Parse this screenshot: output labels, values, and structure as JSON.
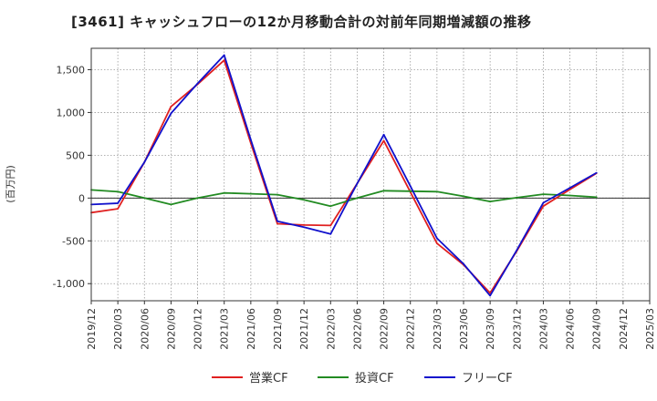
{
  "chart_data": {
    "type": "line",
    "title": "[3461]  キャッシュフローの12か月移動合計の対前年同期増減額の推移",
    "ylabel": "(百万円)",
    "xlabel": "",
    "ylim": [
      -1200,
      1750
    ],
    "y_ticks": [
      1500,
      1000,
      500,
      0,
      -500,
      -1000
    ],
    "y_tick_labels": [
      "1,500",
      "1,000",
      "500",
      "0",
      "-500",
      "-1,000"
    ],
    "categories": [
      "2019/12",
      "2020/03",
      "2020/06",
      "2020/09",
      "2020/12",
      "2021/03",
      "2021/06",
      "2021/09",
      "2021/12",
      "2022/03",
      "2022/06",
      "2022/09",
      "2022/12",
      "2023/03",
      "2023/06",
      "2023/09",
      "2023/12",
      "2024/03",
      "2024/06",
      "2024/09",
      "2024/12",
      "2025/03"
    ],
    "grid": true,
    "legend_position": "bottom",
    "series": [
      {
        "name": "営業CF",
        "color": "#e02020",
        "values": [
          -170,
          -125,
          420,
          1070,
          1330,
          1610,
          640,
          -300,
          -315,
          -320,
          170,
          670,
          70,
          -530,
          -780,
          -1110,
          -620,
          -95,
          100,
          290,
          null,
          null
        ]
      },
      {
        "name": "投資CF",
        "color": "#228b22",
        "values": [
          95,
          75,
          0,
          -75,
          0,
          60,
          50,
          40,
          -20,
          -95,
          0,
          85,
          80,
          75,
          20,
          -40,
          5,
          45,
          30,
          10,
          null,
          null
        ]
      },
      {
        "name": "フリーCF",
        "color": "#1010cc",
        "values": [
          -75,
          -60,
          420,
          990,
          1340,
          1670,
          680,
          -270,
          -340,
          -420,
          170,
          740,
          140,
          -470,
          -770,
          -1140,
          -610,
          -55,
          120,
          295,
          null,
          null
        ]
      }
    ]
  }
}
